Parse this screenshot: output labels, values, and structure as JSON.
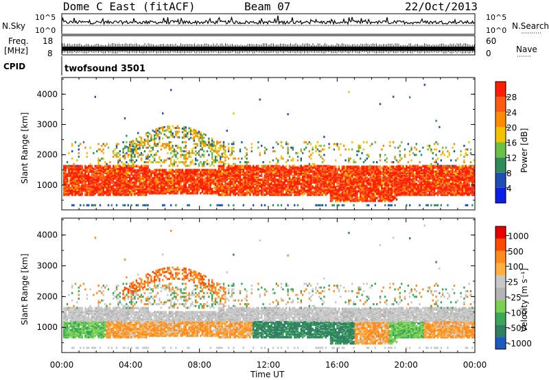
{
  "header": {
    "station": "Dome C East (fitACF)",
    "beam": "Beam 07",
    "date": "22/Oct/2013"
  },
  "strip_labels": {
    "nsky": "N.Sky",
    "nsearch": "N.Search",
    "freq": "Freq.",
    "freq_unit": "[MHz]",
    "nave": "Nave",
    "cpid": "CPID",
    "cpid_value": "twofsound 3501",
    "nsky_top": "10^5",
    "nsky_bottom": "10^0",
    "nsearch_top": "10^5",
    "nsearch_bottom": "10^0",
    "freq_top": "18",
    "freq_bottom": "8",
    "nave_top": "60",
    "nave_bottom": "0"
  },
  "colors": {
    "power_scale": [
      "#0a1ee6",
      "#1e4db5",
      "#2e8c5a",
      "#6abf45",
      "#f2c200",
      "#ff8c00",
      "#ff5a14",
      "#ff1e00"
    ],
    "velocity_scale": [
      "#e60000",
      "#ff4a00",
      "#ff8c1a",
      "#ffb040",
      "#c8c8c8",
      "#b4b4b4",
      "#7ad050",
      "#3aa858",
      "#2f8060",
      "#1d5ac0"
    ]
  },
  "chart_data": [
    {
      "type": "heatmap",
      "name": "power",
      "x_ticks": [
        "00:00",
        "04:00",
        "08:00",
        "12:00",
        "16:00",
        "20:00",
        "00:00"
      ],
      "xlabel": "Time UT",
      "ylabel": "Slant Range [km]",
      "y_ticks": [
        1000,
        2000,
        3000,
        4000
      ],
      "ylim": [
        180,
        4550
      ],
      "colorbar_label": "Power [dB]",
      "colorbar_ticks": [
        "4",
        "8",
        "12",
        "16",
        "20",
        "24",
        "28"
      ]
    },
    {
      "type": "heatmap",
      "name": "velocity",
      "x_ticks": [
        "00:00",
        "04:00",
        "08:00",
        "12:00",
        "16:00",
        "20:00",
        "00:00"
      ],
      "xlabel": "Time UT",
      "ylabel": "Slant Range [km]",
      "y_ticks": [
        1000,
        2000,
        3000,
        4000
      ],
      "ylim": [
        180,
        4550
      ],
      "colorbar_label": "Velocity [m s⁻¹]",
      "colorbar_ticks": [
        "1000",
        "500",
        "100",
        "25",
        "-25",
        "-100",
        "-500",
        "-1000"
      ]
    }
  ]
}
